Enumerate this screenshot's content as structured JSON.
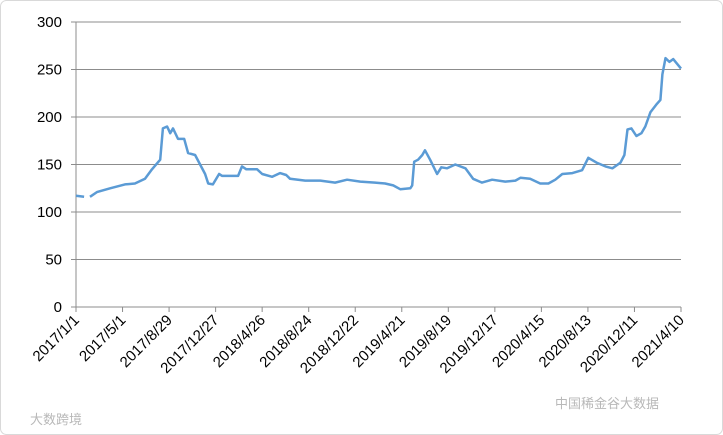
{
  "chart_data": {
    "type": "line",
    "x": [
      "2017/1/1",
      "2017/1/22",
      "2017/1/29",
      "2017/2/6",
      "2017/2/24",
      "2017/3/30",
      "2017/5/7",
      "2017/6/2",
      "2017/6/28",
      "2017/7/16",
      "2017/8/6",
      "2017/8/13",
      "2017/8/24",
      "2017/9/1",
      "2017/9/8",
      "2017/9/21",
      "2017/10/7",
      "2017/10/17",
      "2017/11/4",
      "2017/11/17",
      "2017/11/30",
      "2017/12/8",
      "2017/12/20",
      "2018/1/5",
      "2018/1/13",
      "2018/2/23",
      "2018/3/5",
      "2018/3/16",
      "2018/4/13",
      "2018/4/26",
      "2018/5/22",
      "2018/6/11",
      "2018/6/27",
      "2018/7/7",
      "2018/8/15",
      "2018/9/23",
      "2018/10/31",
      "2018/12/1",
      "2019/1/4",
      "2019/2/11",
      "2019/3/9",
      "2019/3/30",
      "2019/4/17",
      "2019/5/13",
      "2019/5/18",
      "2019/5/23",
      "2019/6/2",
      "2019/6/13",
      "2019/6/20",
      "2019/7/3",
      "2019/7/21",
      "2019/8/1",
      "2019/8/16",
      "2019/9/6",
      "2019/10/2",
      "2019/10/22",
      "2019/11/14",
      "2019/12/10",
      "2020/1/13",
      "2020/2/8",
      "2020/2/21",
      "2020/3/17",
      "2020/4/12",
      "2020/5/3",
      "2020/5/21",
      "2020/6/8",
      "2020/7/4",
      "2020/7/29",
      "2020/8/14",
      "2020/9/4",
      "2020/9/27",
      "2020/10/15",
      "2020/11/5",
      "2020/11/15",
      "2020/11/23",
      "2020/12/3",
      "2020/12/16",
      "2020/12/29",
      "2021/1/8",
      "2021/1/21",
      "2021/2/5",
      "2021/2/16",
      "2021/2/21",
      "2021/3/1",
      "2021/3/11",
      "2021/3/21",
      "2021/3/31",
      "2021/4/10"
    ],
    "series": [
      {
        "color": "#5b9bd5",
        "values": [
          117,
          116,
          null,
          116,
          121,
          125,
          129,
          130,
          135,
          145,
          155,
          188,
          190,
          183,
          188,
          177,
          177,
          162,
          160,
          150,
          140,
          130,
          129,
          140,
          138,
          138,
          148,
          145,
          145,
          140,
          137,
          141,
          139,
          135,
          133,
          133,
          131,
          134,
          132,
          131,
          130,
          128,
          124,
          125,
          128,
          153,
          155,
          160,
          165,
          155,
          140,
          147,
          146,
          150,
          146,
          135,
          131,
          134,
          132,
          133,
          136,
          135,
          130,
          130,
          134,
          140,
          141,
          144,
          157,
          152,
          148,
          146,
          152,
          160,
          187,
          188,
          180,
          183,
          190,
          205,
          213,
          218,
          245,
          262,
          258,
          261,
          256,
          251
        ]
      }
    ],
    "xlim": [
      "2017/1/1",
      "2021/4/10"
    ],
    "xticks": [
      "2017/1/1",
      "2017/5/1",
      "2017/8/29",
      "2017/12/27",
      "2018/4/26",
      "2018/8/24",
      "2018/12/22",
      "2019/4/21",
      "2019/8/19",
      "2019/12/17",
      "2020/4/15",
      "2020/8/13",
      "2020/12/11",
      "2021/4/10"
    ],
    "ylim": [
      0,
      300
    ],
    "yticks": [
      0,
      50,
      100,
      150,
      200,
      250,
      300
    ],
    "grid": true
  },
  "watermarks": [
    "大数跨境",
    "中国稀金谷大数据"
  ]
}
